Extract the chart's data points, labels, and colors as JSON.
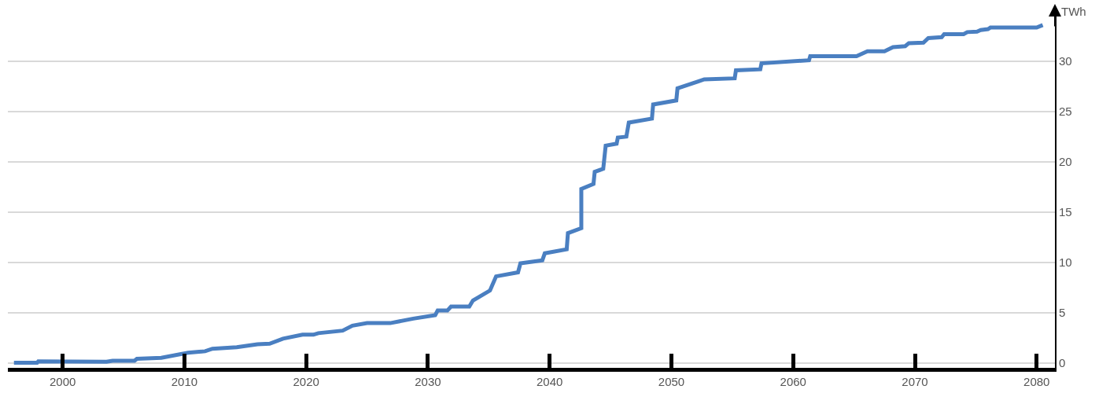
{
  "chart_data": {
    "type": "line",
    "ylabel": "TWh",
    "x": [
      1996.0,
      1997.9,
      1998.0,
      2003.6,
      2004.1,
      2005.9,
      2006.1,
      2008.1,
      2010.3,
      2011.7,
      2012.3,
      2014.3,
      2016.0,
      2017.0,
      2018.1,
      2019.7,
      2020.6,
      2021.0,
      2023.0,
      2023.8,
      2025.0,
      2026.9,
      2028.8,
      2030.6,
      2030.8,
      2031.6,
      2031.9,
      2033.4,
      2033.7,
      2035.1,
      2035.6,
      2037.4,
      2037.6,
      2039.4,
      2039.6,
      2041.4,
      2041.5,
      2042.6,
      2042.6,
      2043.6,
      2043.7,
      2044.4,
      2044.6,
      2045.5,
      2045.6,
      2046.3,
      2046.5,
      2048.4,
      2048.5,
      2050.4,
      2050.5,
      2052.2,
      2052.7,
      2055.2,
      2055.3,
      2057.3,
      2057.4,
      2061.3,
      2061.4,
      2065.2,
      2066.1,
      2067.5,
      2068.2,
      2069.2,
      2069.5,
      2070.7,
      2071.1,
      2072.2,
      2072.4,
      2074.0,
      2074.3,
      2075.1,
      2075.4,
      2076.0,
      2076.2,
      2080.0,
      2080.5
    ],
    "series": [
      {
        "color": "#4a7fc1",
        "values": [
          0,
          0,
          0.15,
          0.1,
          0.2,
          0.2,
          0.4,
          0.5,
          1.0,
          1.15,
          1.4,
          1.55,
          1.85,
          1.9,
          2.4,
          2.8,
          2.8,
          2.95,
          3.2,
          3.7,
          3.95,
          3.95,
          4.4,
          4.75,
          5.2,
          5.2,
          5.6,
          5.6,
          6.2,
          7.2,
          8.6,
          9.0,
          9.9,
          10.2,
          10.9,
          11.3,
          12.9,
          13.4,
          17.3,
          17.8,
          19.0,
          19.3,
          21.6,
          21.8,
          22.4,
          22.5,
          23.9,
          24.3,
          25.7,
          26.1,
          27.3,
          28.0,
          28.2,
          28.3,
          29.1,
          29.2,
          29.8,
          30.1,
          30.5,
          30.5,
          31.0,
          31.0,
          31.4,
          31.5,
          31.8,
          31.85,
          32.3,
          32.4,
          32.7,
          32.7,
          32.9,
          32.95,
          33.1,
          33.2,
          33.35,
          33.35,
          33.6
        ]
      }
    ],
    "xlim": [
      1995.5,
      2081.5
    ],
    "xticks": [
      2000,
      2010,
      2020,
      2030,
      2040,
      2050,
      2060,
      2070,
      2080
    ],
    "ylim": [
      -0.5,
      35
    ],
    "yticks": [
      0,
      5,
      10,
      15,
      20,
      25,
      30
    ],
    "grid": "y",
    "marker": "none",
    "line_style": "solid"
  }
}
